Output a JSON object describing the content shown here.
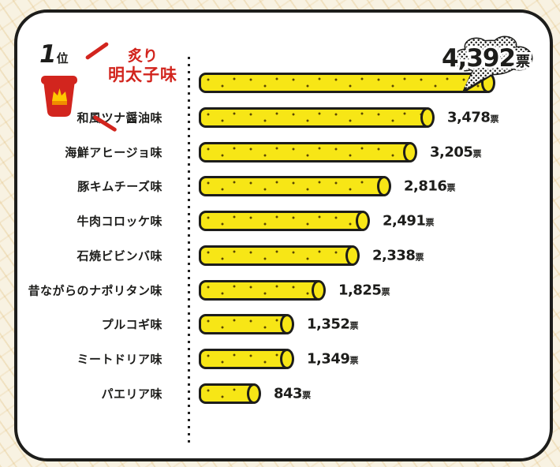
{
  "chart_data": {
    "type": "bar",
    "orientation": "horizontal",
    "unit": "票",
    "categories": [
      "炙り明太子味",
      "和風ツナ醤油味",
      "海鮮アヒージョ味",
      "豚キムチーズ味",
      "牛肉コロッケ味",
      "石焼ビビンバ味",
      "昔ながらのナポリタン味",
      "プルコギ味",
      "ミートドリア味",
      "パエリア味"
    ],
    "values": [
      4392,
      3478,
      3205,
      2816,
      2491,
      2338,
      1825,
      1352,
      1349,
      843
    ],
    "value_labels": [
      "4,392",
      "3,478",
      "3,205",
      "2,816",
      "2,491",
      "2,338",
      "1,825",
      "1,352",
      "1,349",
      "843"
    ],
    "xlim": [
      0,
      4392
    ],
    "grid": false,
    "legend": false,
    "bar_style": "yellow stick (umaibo-like cylinder) with speckles"
  },
  "winner": {
    "rank_label_number": "1",
    "rank_label_suffix": "位",
    "flavor_line1": "炙り",
    "flavor_line2": "明太子味",
    "votes_label": "4,392",
    "unit": "票"
  },
  "icons": {
    "winner_cup": "red-snack-cup-with-crown",
    "votes_bubble": "halftone-speech-cloud"
  },
  "colors": {
    "bar_yellow": "#f7e616",
    "outline_black": "#1d1d1b",
    "accent_red": "#d2251e",
    "crown_gold": "#ffc800",
    "frame_background": "#ffffff",
    "page_background": "#f8f2e2"
  }
}
